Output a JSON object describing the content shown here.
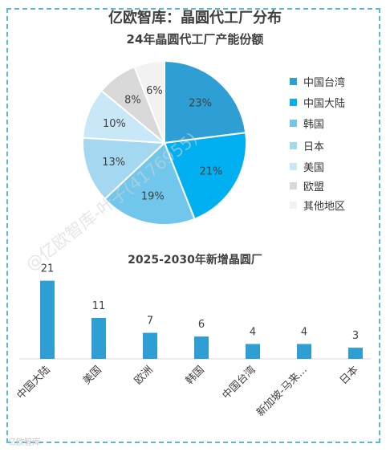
{
  "main_title": "亿欧智库：晶圆代工厂分布",
  "watermark": "@亿欧智库-叶子(4176955)",
  "footer_logo": "亿欧智库",
  "colors": {
    "frame": "#5fb8d3",
    "bar": "#2e9fd4",
    "axis": "#d9d9d9"
  },
  "chart_data": [
    {
      "type": "pie",
      "title": "24年晶圆代工厂产能份额",
      "unit": "%",
      "categories": [
        "中国台湾",
        "中国大陆",
        "韩国",
        "日本",
        "美国",
        "欧盟",
        "其他地区"
      ],
      "values": [
        23,
        21,
        19,
        13,
        10,
        8,
        6
      ],
      "labels": [
        "23%",
        "21%",
        "19%",
        "13%",
        "10%",
        "8%",
        "6%"
      ],
      "colors": [
        "#2e9fd4",
        "#00b0f0",
        "#71c6ec",
        "#a4d8f1",
        "#c8e8f7",
        "#d9d9d9",
        "#f2f2f2"
      ],
      "legend_position": "right"
    },
    {
      "type": "bar",
      "title": "2025-2030年新增晶圆厂",
      "categories": [
        "中国大陆",
        "美国",
        "欧洲",
        "韩国",
        "中国台湾",
        "新加坡-马来...",
        "日本"
      ],
      "values": [
        21,
        11,
        7,
        6,
        4,
        4,
        3
      ],
      "labels": [
        "21",
        "11",
        "7",
        "6",
        "4",
        "4",
        "3"
      ],
      "ylim": [
        0,
        22
      ],
      "grid": false
    }
  ]
}
